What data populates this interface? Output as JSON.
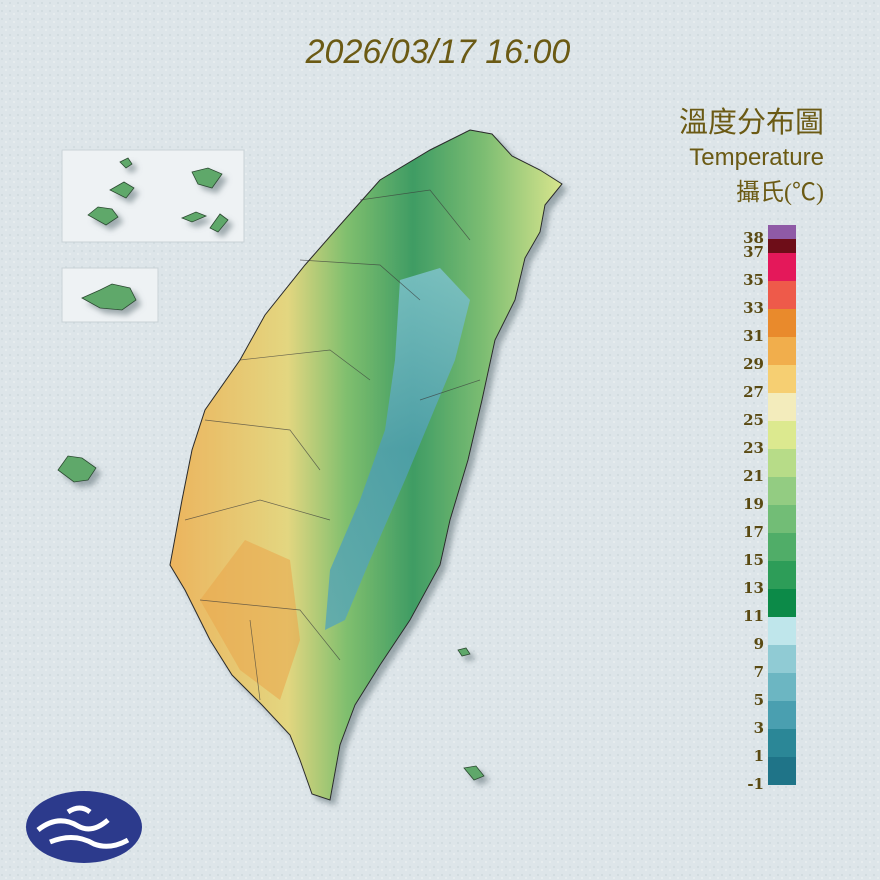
{
  "header": {
    "datetime": "2026/03/17 16:00"
  },
  "legend": {
    "title": "溫度分布圖",
    "subtitle": "Temperature",
    "unit": "攝氏(℃)",
    "ticks": [
      -1,
      1,
      3,
      5,
      7,
      9,
      11,
      13,
      15,
      17,
      19,
      21,
      23,
      25,
      27,
      29,
      31,
      33,
      35,
      37,
      38
    ],
    "colors": [
      "#1f7488",
      "#2b8797",
      "#4a9fb0",
      "#6cb6c2",
      "#90cbd4",
      "#bfe6eb",
      "#0c8a48",
      "#2d9d58",
      "#50ad68",
      "#72bd76",
      "#93cc82",
      "#b7dc88",
      "#dce98f",
      "#f3ecbc",
      "#f6cf72",
      "#f1ae4c",
      "#e98a2c",
      "#ee5a4a",
      "#e4185a",
      "#6e0d18",
      "#8f5aa6"
    ]
  }
}
